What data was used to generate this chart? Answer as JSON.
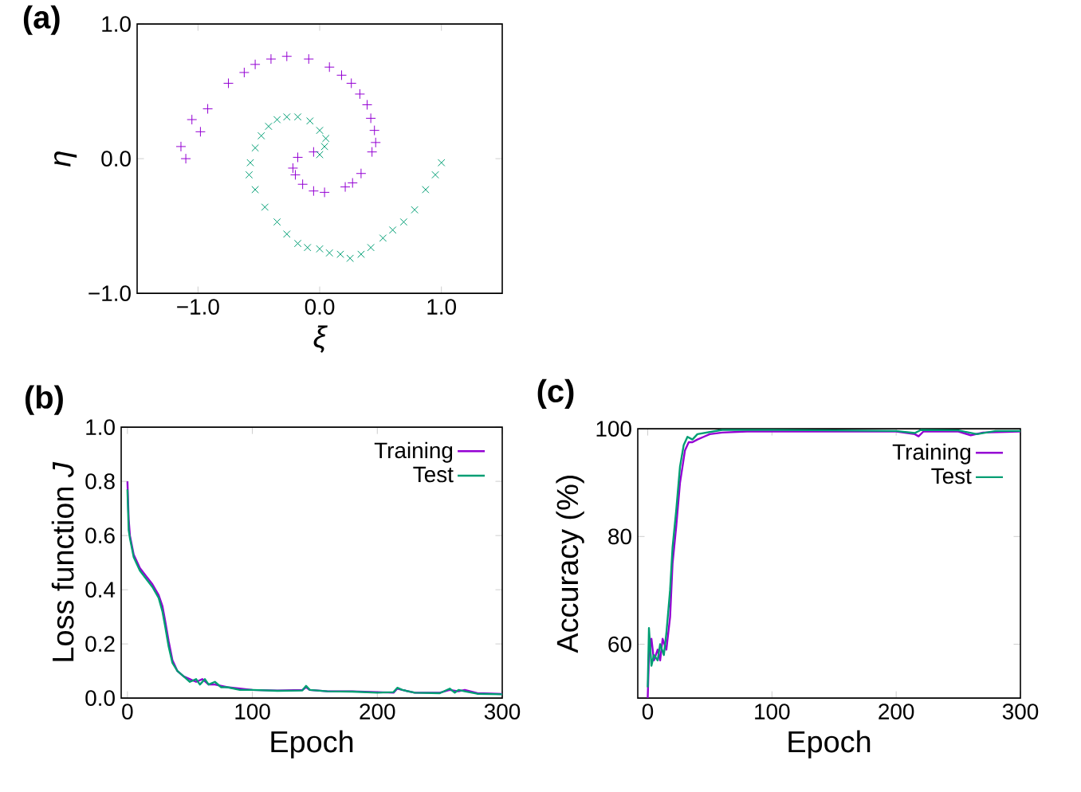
{
  "chart_data": [
    {
      "type": "scatter",
      "title": "(a)",
      "xlabel": "ξ",
      "ylabel": "η",
      "xlim": [
        -1.5,
        1.5
      ],
      "ylim": [
        -1,
        1
      ],
      "xticks": [
        {
          "value": -1,
          "label": "−1.0"
        },
        {
          "value": 0,
          "label": "0.0"
        },
        {
          "value": 1,
          "label": "1.0"
        }
      ],
      "yticks": [
        {
          "value": -1,
          "label": "−1.0"
        },
        {
          "value": 0,
          "label": "0.0"
        },
        {
          "value": 1,
          "label": "1.0"
        }
      ],
      "series": [
        {
          "color": "#9400d3",
          "marker": "plus",
          "x": [
            -1.14,
            -1.05,
            -0.92,
            -0.75,
            -0.53,
            -0.27,
            -0.09,
            0.08,
            0.26,
            0.39,
            0.45,
            0.43,
            0.34,
            0.21,
            0.04,
            -0.14,
            -0.22,
            -0.18,
            -0.05,
            -1.1,
            -0.98,
            -0.62,
            -0.4,
            0.18,
            0.33,
            0.42,
            0.46,
            0.27,
            -0.05,
            -0.2
          ],
          "values": [
            0.09,
            0.29,
            0.37,
            0.56,
            0.7,
            0.76,
            0.74,
            0.68,
            0.56,
            0.4,
            0.21,
            0.05,
            -0.11,
            -0.21,
            -0.25,
            -0.19,
            -0.07,
            0.01,
            0.05,
            0.0,
            0.2,
            0.64,
            0.74,
            0.62,
            0.48,
            0.3,
            0.12,
            -0.18,
            -0.24,
            -0.12
          ]
        },
        {
          "color": "#009e73",
          "marker": "cross",
          "x": [
            1.0,
            0.87,
            0.69,
            0.52,
            0.34,
            0.17,
            0.0,
            -0.18,
            -0.35,
            -0.53,
            -0.57,
            -0.48,
            -0.35,
            -0.18,
            0.0,
            0.04,
            0.0,
            0.95,
            0.78,
            0.6,
            0.42,
            0.25,
            0.08,
            -0.1,
            -0.27,
            -0.45,
            -0.58,
            -0.53,
            -0.42,
            -0.27,
            -0.08,
            0.05
          ],
          "values": [
            -0.03,
            -0.23,
            -0.47,
            -0.59,
            -0.71,
            -0.71,
            -0.67,
            -0.63,
            -0.47,
            -0.23,
            -0.03,
            0.17,
            0.29,
            0.31,
            0.21,
            0.09,
            0.03,
            -0.12,
            -0.38,
            -0.53,
            -0.66,
            -0.74,
            -0.7,
            -0.66,
            -0.56,
            -0.36,
            -0.12,
            0.08,
            0.24,
            0.31,
            0.28,
            0.15
          ]
        }
      ]
    },
    {
      "type": "line",
      "title": "(b)",
      "xlabel": "Epoch",
      "ylabel": "Loss function *J*",
      "xlim": [
        -5,
        300
      ],
      "ylim": [
        0,
        1
      ],
      "xticks": [
        0,
        100,
        200,
        300
      ],
      "yticks": [
        {
          "value": 0,
          "label": "0.0"
        },
        {
          "value": 0.2,
          "label": "0.2"
        },
        {
          "value": 0.4,
          "label": "0.4"
        },
        {
          "value": 0.6,
          "label": "0.6"
        },
        {
          "value": 0.8,
          "label": "0.8"
        },
        {
          "value": 1,
          "label": "1.0"
        }
      ],
      "legend": "top right",
      "line_style": "solid",
      "series": [
        {
          "name": "Training",
          "color": "#9400d3",
          "x": [
            0,
            1,
            2,
            5,
            10,
            15,
            20,
            25,
            28,
            30,
            33,
            36,
            40,
            45,
            50,
            55,
            60,
            65,
            70,
            80,
            90,
            100,
            120,
            140,
            143,
            146,
            160,
            180,
            200,
            213,
            216,
            220,
            230,
            250,
            258,
            265,
            270,
            280,
            300
          ],
          "values": [
            0.8,
            0.66,
            0.6,
            0.53,
            0.48,
            0.45,
            0.42,
            0.38,
            0.34,
            0.29,
            0.21,
            0.14,
            0.1,
            0.08,
            0.07,
            0.06,
            0.07,
            0.05,
            0.05,
            0.04,
            0.035,
            0.03,
            0.028,
            0.03,
            0.04,
            0.03,
            0.025,
            0.025,
            0.022,
            0.02,
            0.035,
            0.03,
            0.02,
            0.02,
            0.03,
            0.025,
            0.03,
            0.018,
            0.015
          ]
        },
        {
          "name": "Test",
          "color": "#009e73",
          "x": [
            0,
            1,
            2,
            5,
            10,
            15,
            20,
            25,
            28,
            30,
            33,
            36,
            40,
            45,
            50,
            55,
            58,
            62,
            65,
            70,
            75,
            80,
            90,
            100,
            120,
            140,
            143,
            146,
            160,
            180,
            200,
            213,
            216,
            220,
            230,
            250,
            258,
            262,
            265,
            270,
            280,
            300
          ],
          "values": [
            0.77,
            0.62,
            0.59,
            0.52,
            0.47,
            0.44,
            0.41,
            0.37,
            0.32,
            0.27,
            0.19,
            0.13,
            0.1,
            0.08,
            0.06,
            0.07,
            0.05,
            0.07,
            0.05,
            0.06,
            0.04,
            0.04,
            0.03,
            0.03,
            0.027,
            0.028,
            0.045,
            0.03,
            0.025,
            0.024,
            0.02,
            0.022,
            0.038,
            0.03,
            0.02,
            0.018,
            0.035,
            0.02,
            0.03,
            0.025,
            0.016,
            0.014
          ]
        }
      ]
    },
    {
      "type": "line",
      "title": "(c)",
      "xlabel": "Epoch",
      "ylabel": "Accuracy (%)",
      "xlim": [
        -8,
        300
      ],
      "ylim": [
        50,
        100
      ],
      "xticks": [
        0,
        100,
        200,
        300
      ],
      "yticks": [
        60,
        80,
        100
      ],
      "legend": "top right",
      "line_style": "solid",
      "series": [
        {
          "name": "Training",
          "color": "#9400d3",
          "x": [
            0,
            1,
            3,
            5,
            8,
            10,
            12,
            15,
            18,
            20,
            23,
            26,
            30,
            33,
            36,
            40,
            45,
            50,
            60,
            80,
            100,
            150,
            200,
            215,
            218,
            222,
            250,
            260,
            270,
            300
          ],
          "values": [
            50,
            58,
            61,
            57,
            59,
            57,
            61,
            59,
            65,
            75,
            82,
            90,
            96,
            97.5,
            97.5,
            98,
            98.5,
            99,
            99.3,
            99.5,
            99.5,
            99.5,
            99.5,
            99,
            98.6,
            99.5,
            99.5,
            98.8,
            99.3,
            99.5
          ]
        },
        {
          "name": "Test",
          "color": "#009e73",
          "x": [
            0,
            1,
            3,
            5,
            8,
            10,
            13,
            15,
            18,
            20,
            23,
            26,
            29,
            32,
            36,
            40,
            50,
            60,
            100,
            150,
            200,
            215,
            220,
            250,
            265,
            280,
            300
          ],
          "values": [
            52,
            63,
            56,
            58,
            57,
            60,
            58,
            62,
            70,
            78,
            85,
            93,
            97,
            98.5,
            98,
            99,
            99.4,
            99.8,
            99.8,
            99.7,
            99.6,
            99.2,
            99.8,
            99.7,
            99,
            99.6,
            99.6
          ]
        }
      ]
    }
  ]
}
